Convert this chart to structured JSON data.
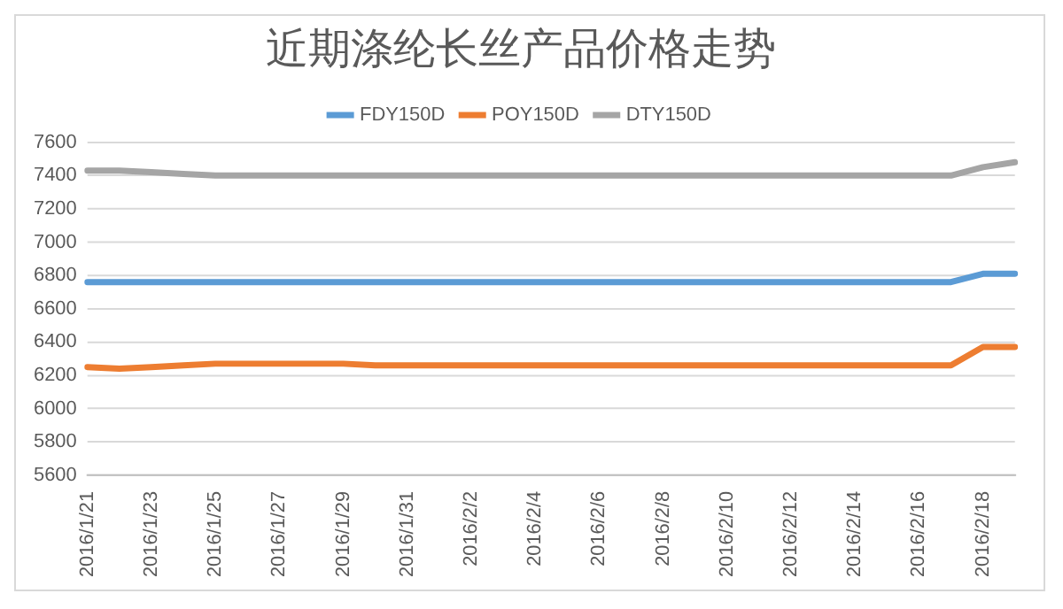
{
  "chart_data": {
    "type": "line",
    "title": "近期涤纶长丝产品价格走势",
    "categories": [
      "2016/1/21",
      null,
      "2016/1/23",
      null,
      "2016/1/25",
      null,
      "2016/1/27",
      null,
      "2016/1/29",
      null,
      "2016/1/31",
      null,
      "2016/2/2",
      null,
      "2016/2/4",
      null,
      "2016/2/6",
      null,
      "2016/2/8",
      null,
      "2016/2/10",
      null,
      "2016/2/12",
      null,
      "2016/2/14",
      null,
      "2016/2/16",
      null,
      "2016/2/18",
      null
    ],
    "series": [
      {
        "name": "FDY150D",
        "color": "#5b9bd5",
        "values": [
          6760,
          6760,
          6760,
          6760,
          6760,
          6760,
          6760,
          6760,
          6760,
          6760,
          6760,
          6760,
          6760,
          6760,
          6760,
          6760,
          6760,
          6760,
          6760,
          6760,
          6760,
          6760,
          6760,
          6760,
          6760,
          6760,
          6760,
          6760,
          6810,
          6810
        ]
      },
      {
        "name": "POY150D",
        "color": "#ed7d31",
        "values": [
          6250,
          6240,
          6250,
          6260,
          6270,
          6270,
          6270,
          6270,
          6270,
          6260,
          6260,
          6260,
          6260,
          6260,
          6260,
          6260,
          6260,
          6260,
          6260,
          6260,
          6260,
          6260,
          6260,
          6260,
          6260,
          6260,
          6260,
          6260,
          6370,
          6370
        ]
      },
      {
        "name": "DTY150D",
        "color": "#a5a5a5",
        "values": [
          7430,
          7430,
          7420,
          7410,
          7400,
          7400,
          7400,
          7400,
          7400,
          7400,
          7400,
          7400,
          7400,
          7400,
          7400,
          7400,
          7400,
          7400,
          7400,
          7400,
          7400,
          7400,
          7400,
          7400,
          7400,
          7400,
          7400,
          7400,
          7450,
          7480
        ]
      }
    ],
    "ylim": [
      5600,
      7600
    ],
    "yticks": [
      5600,
      5800,
      6000,
      6200,
      6400,
      6600,
      6800,
      7000,
      7200,
      7400,
      7600
    ],
    "grid": "y",
    "legend": "top",
    "marker": "none",
    "line_style": "solid"
  }
}
